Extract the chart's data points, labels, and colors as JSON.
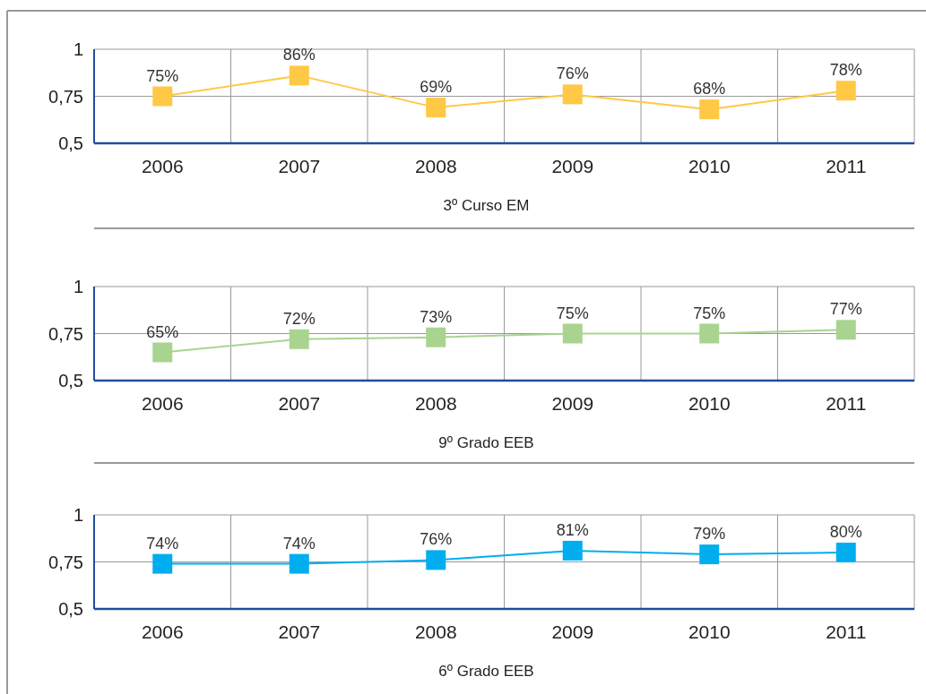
{
  "chart_data": [
    {
      "type": "line",
      "xlabel": "3º Curso EM",
      "categories": [
        "2006",
        "2007",
        "2008",
        "2009",
        "2010",
        "2011"
      ],
      "series": [
        {
          "color": "#ffc845",
          "values": [
            0.75,
            0.86,
            0.69,
            0.76,
            0.68,
            0.78
          ],
          "value_labels": [
            "75%",
            "86%",
            "69%",
            "76%",
            "68%",
            "78%"
          ]
        }
      ],
      "ylim": [
        0.5,
        1
      ],
      "yticks": [
        {
          "value": 0.5,
          "label": "0,5"
        },
        {
          "value": 0.75,
          "label": "0,75"
        },
        {
          "value": 1,
          "label": "1"
        }
      ],
      "grid": true,
      "marker": "square"
    },
    {
      "type": "line",
      "xlabel": "9º Grado EEB",
      "categories": [
        "2006",
        "2007",
        "2008",
        "2009",
        "2010",
        "2011"
      ],
      "series": [
        {
          "color": "#a8d48f",
          "values": [
            0.65,
            0.72,
            0.73,
            0.75,
            0.75,
            0.77
          ],
          "value_labels": [
            "65%",
            "72%",
            "73%",
            "75%",
            "75%",
            "77%"
          ]
        }
      ],
      "ylim": [
        0.5,
        1
      ],
      "yticks": [
        {
          "value": 0.5,
          "label": "0,5"
        },
        {
          "value": 0.75,
          "label": "0,75"
        },
        {
          "value": 1,
          "label": "1"
        }
      ],
      "grid": true,
      "marker": "square"
    },
    {
      "type": "line",
      "xlabel": "6º Grado EEB",
      "categories": [
        "2006",
        "2007",
        "2008",
        "2009",
        "2010",
        "2011"
      ],
      "series": [
        {
          "color": "#00aeef",
          "values": [
            0.74,
            0.74,
            0.76,
            0.81,
            0.79,
            0.8
          ],
          "value_labels": [
            "74%",
            "74%",
            "76%",
            "81%",
            "79%",
            "80%"
          ]
        }
      ],
      "ylim": [
        0.5,
        1
      ],
      "yticks": [
        {
          "value": 0.5,
          "label": "0,5"
        },
        {
          "value": 0.75,
          "label": "0,75"
        },
        {
          "value": 1,
          "label": "1"
        }
      ],
      "grid": true,
      "marker": "square"
    }
  ]
}
